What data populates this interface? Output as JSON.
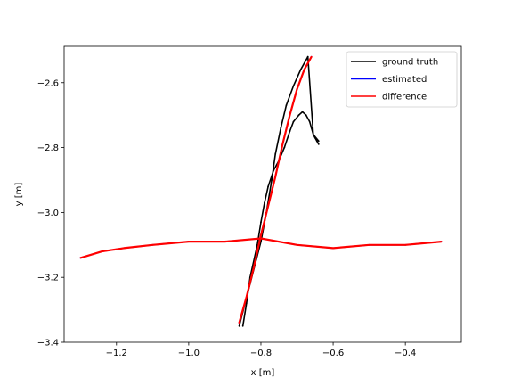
{
  "chart_data": {
    "type": "line",
    "title": "",
    "xlabel": "x [m]",
    "ylabel": "y [m]",
    "xlim": [
      -1.345,
      -0.245
    ],
    "ylim": [
      -3.4,
      -2.488
    ],
    "xticks": [
      -1.2,
      -1.0,
      -0.8,
      -0.6,
      -0.4
    ],
    "xtick_labels": [
      "−1.2",
      "−1.0",
      "−0.8",
      "−0.6",
      "−0.4"
    ],
    "yticks": [
      -3.4,
      -3.2,
      -3.0,
      -2.8,
      -2.6
    ],
    "ytick_labels": [
      "−3.4",
      "−3.2",
      "−3.0",
      "−2.8",
      "−2.6"
    ],
    "grid": false,
    "legend_position": "top-right",
    "series": [
      {
        "name": "ground truth",
        "color": "#000000",
        "x": [
          -0.86,
          -0.83,
          -0.8,
          -0.785,
          -0.77,
          -0.76,
          -0.745,
          -0.73,
          -0.71,
          -0.69,
          -0.67,
          -0.655,
          -0.64,
          -0.85,
          -0.84,
          -0.83,
          -0.81,
          -0.8,
          -0.79,
          -0.78,
          -0.765,
          -0.75,
          -0.735,
          -0.72,
          -0.71,
          -0.695,
          -0.685,
          -0.675,
          -0.665,
          -0.66,
          -0.655,
          -0.65,
          -0.645,
          -0.64
        ],
        "y": [
          -3.35,
          -3.22,
          -3.09,
          -3.0,
          -2.9,
          -2.82,
          -2.74,
          -2.67,
          -2.61,
          -2.56,
          -2.52,
          -2.76,
          -2.78,
          -3.35,
          -3.28,
          -3.2,
          -3.1,
          -3.03,
          -2.97,
          -2.92,
          -2.87,
          -2.84,
          -2.8,
          -2.75,
          -2.72,
          -2.7,
          -2.69,
          -2.7,
          -2.72,
          -2.74,
          -2.76,
          -2.77,
          -2.78,
          -2.79
        ]
      },
      {
        "name": "estimated",
        "color": "#0000ff",
        "x": [
          -1.3,
          -1.24,
          -1.18,
          -1.1,
          -1.0,
          -0.9,
          -0.8,
          -0.7,
          -0.6,
          -0.5,
          -0.4,
          -0.3,
          -0.86,
          -0.84,
          -0.82,
          -0.8,
          -0.78,
          -0.76,
          -0.74,
          -0.72,
          -0.7,
          -0.68,
          -0.66
        ],
        "y": [
          -3.14,
          -3.12,
          -3.11,
          -3.1,
          -3.09,
          -3.09,
          -3.08,
          -3.1,
          -3.11,
          -3.1,
          -3.1,
          -3.09,
          -3.34,
          -3.26,
          -3.17,
          -3.07,
          -2.98,
          -2.89,
          -2.79,
          -2.7,
          -2.62,
          -2.56,
          -2.52
        ]
      },
      {
        "name": "difference",
        "color": "#ff0000",
        "x": [
          -1.3,
          -1.24,
          -1.18,
          -1.1,
          -1.0,
          -0.9,
          -0.8,
          -0.7,
          -0.6,
          -0.5,
          -0.4,
          -0.3,
          -0.86,
          -0.84,
          -0.82,
          -0.8,
          -0.78,
          -0.76,
          -0.74,
          -0.72,
          -0.7,
          -0.68,
          -0.66
        ],
        "y": [
          -3.14,
          -3.12,
          -3.11,
          -3.1,
          -3.09,
          -3.09,
          -3.08,
          -3.1,
          -3.11,
          -3.1,
          -3.1,
          -3.09,
          -3.34,
          -3.26,
          -3.17,
          -3.07,
          -2.98,
          -2.89,
          -2.79,
          -2.7,
          -2.62,
          -2.56,
          -2.52
        ]
      }
    ]
  }
}
